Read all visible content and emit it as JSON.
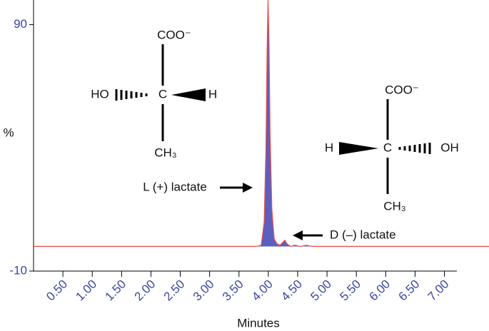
{
  "chart_data": {
    "type": "line",
    "y_label": "%",
    "x_label": "Minutes",
    "xlim": [
      0,
      7.76
    ],
    "ylim": [
      -10,
      100
    ],
    "xticks": [
      {
        "value": 0.5,
        "label": "0.50"
      },
      {
        "value": 1,
        "label": "1.00"
      },
      {
        "value": 1.5,
        "label": "1.50"
      },
      {
        "value": 2,
        "label": "2.00"
      },
      {
        "value": 2.5,
        "label": "2.50"
      },
      {
        "value": 3,
        "label": "3.00"
      },
      {
        "value": 3.5,
        "label": "3.50"
      },
      {
        "value": 4,
        "label": "4.00"
      },
      {
        "value": 4.5,
        "label": "4.50"
      },
      {
        "value": 5,
        "label": "5.00"
      },
      {
        "value": 5.5,
        "label": "5.50"
      },
      {
        "value": 6,
        "label": "6.00"
      },
      {
        "value": 6.5,
        "label": "6.50"
      },
      {
        "value": 7,
        "label": "7.00"
      }
    ],
    "yticks": [
      -10,
      90
    ],
    "tick_color": "#3b46a0",
    "series": [
      {
        "color": "#e8504a",
        "fill": "#5a5fc0",
        "x": [
          0,
          3.8,
          3.88,
          3.93,
          3.96,
          3.98,
          3.995,
          4.01,
          4.03,
          4.06,
          4.1,
          4.15,
          4.2,
          4.28,
          4.32,
          4.38,
          4.45,
          4.55,
          4.65,
          4.75,
          7.76
        ],
        "values": [
          0,
          0,
          0.5,
          10,
          40,
          80,
          100,
          85,
          45,
          15,
          3,
          1,
          0.5,
          2.5,
          1,
          0,
          0.5,
          0,
          0.5,
          0,
          0
        ]
      }
    ],
    "annotations": {
      "l_lactate": "L (+) lactate",
      "d_lactate": "D (–) lactate",
      "l_structure": {
        "top": "COO⁻",
        "center": "C",
        "left": "HO",
        "right": "H",
        "bottom": "CH₃"
      },
      "d_structure": {
        "top": "COO⁻",
        "center": "C",
        "left": "H",
        "right": "OH",
        "bottom": "CH₃"
      }
    }
  }
}
